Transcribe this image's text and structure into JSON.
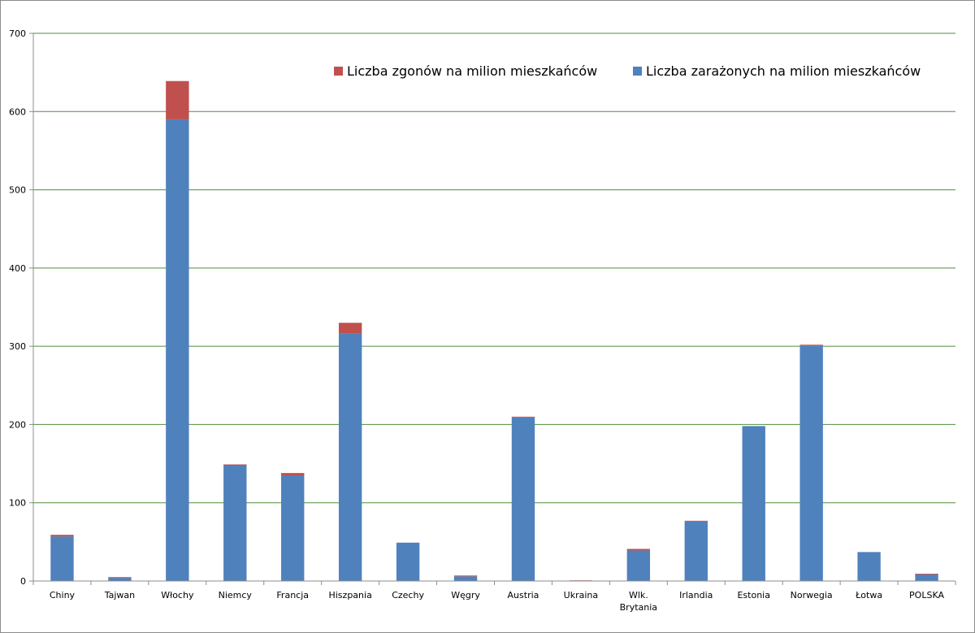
{
  "chart_data": {
    "type": "bar",
    "stacked": true,
    "categories": [
      "Chiny",
      "Tajwan",
      "Włochy",
      "Niemcy",
      "Francja",
      "Hiszpania",
      "Czechy",
      "Węgry",
      "Austria",
      "Ukraina",
      "Wlk.\nBrytania",
      "Irlandia",
      "Estonia",
      "Norwegia",
      "Łotwa",
      "POLSKA"
    ],
    "series": [
      {
        "name": "Liczba zarażonych na milion mieszkańców",
        "color": "#4f81bd",
        "values": [
          57,
          4,
          590,
          148,
          135,
          316,
          49,
          6,
          209,
          0.5,
          39,
          76,
          198,
          301,
          37,
          9
        ]
      },
      {
        "name": "Liczba zgonów na milion mieszkańców",
        "color": "#c0504d",
        "values": [
          2,
          1,
          49,
          1,
          3,
          14,
          0,
          1,
          1,
          0.3,
          2,
          1,
          0,
          1,
          0,
          0.2
        ]
      }
    ],
    "ylim": [
      0,
      700
    ],
    "yticks": [
      0,
      100,
      200,
      300,
      400,
      500,
      600,
      700
    ],
    "xlabel": "",
    "ylabel": "",
    "title": "",
    "grid": true,
    "grid_color": "#4e8f3a",
    "legend_position": "top-right"
  }
}
